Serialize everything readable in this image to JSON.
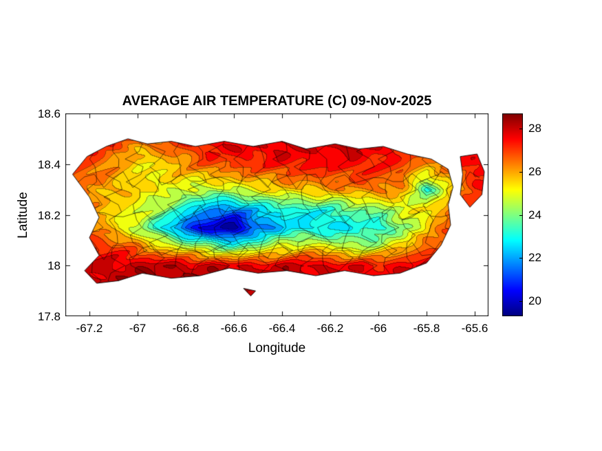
{
  "figure": {
    "title": "AVERAGE AIR TEMPERATURE (C) 09-Nov-2025",
    "xlabel": "Longitude",
    "ylabel": "Latitude",
    "background_color": "#ffffff"
  },
  "axes": {
    "xlim": [
      -67.3,
      -65.542857
    ],
    "ylim": [
      17.8,
      18.6
    ],
    "x_ticks": [
      -67.2,
      -67.0,
      -66.8,
      -66.6,
      -66.4,
      -66.2,
      -66.0,
      -65.8,
      -65.6
    ],
    "x_tick_labels": [
      "-67.2",
      "-67",
      "-66.8",
      "-66.6",
      "-66.4",
      "-66.2",
      "-66",
      "-65.8",
      "-65.6"
    ],
    "y_ticks": [
      17.8,
      18.0,
      18.2,
      18.4,
      18.6
    ],
    "y_tick_labels": [
      "17.8",
      "18",
      "18.2",
      "18.4",
      "18.6"
    ],
    "box_color": "#000000"
  },
  "colorbar": {
    "ticks": [
      20,
      22,
      24,
      26,
      28
    ],
    "tick_labels": [
      "20",
      "22",
      "24",
      "26",
      "28"
    ],
    "vmin": 19.3,
    "vmax": 28.7,
    "colormap": "jet"
  },
  "chart_data": {
    "type": "heatmap",
    "title": "AVERAGE AIR TEMPERATURE (C) 09-Nov-2025",
    "xlabel": "Longitude",
    "ylabel": "Latitude",
    "units": "C",
    "region": "Puerto Rico (filled contour map with municipality boundaries)",
    "colormap": "jet",
    "caxis": [
      19.3,
      28.7
    ],
    "band_step": 0.5,
    "xlim": [
      -67.3,
      -65.542857
    ],
    "ylim": [
      17.8,
      18.6
    ],
    "lons": [
      -67.3,
      -67.2,
      -67.1,
      -67.0,
      -66.9,
      -66.8,
      -66.7,
      -66.6,
      -66.5,
      -66.4,
      -66.3,
      -66.2,
      -66.1,
      -66.0,
      -65.9,
      -65.8,
      -65.7,
      -65.6,
      -65.5
    ],
    "lats": [
      17.9,
      18.0,
      18.08,
      18.15,
      18.22,
      18.3,
      18.4,
      18.5
    ],
    "temps": [
      [
        28.2,
        28.2,
        28.2,
        28.2,
        28.3,
        28.3,
        28.3,
        28.2,
        28.2,
        28.2,
        28.1,
        28.0,
        28.0,
        28.0,
        28.0,
        28.1,
        28.1,
        28.2,
        28.2
      ],
      [
        27.8,
        27.9,
        28.0,
        28.1,
        28.2,
        28.1,
        28.0,
        27.8,
        27.8,
        27.9,
        28.0,
        27.8,
        27.6,
        27.5,
        27.7,
        27.9,
        28.0,
        28.1,
        28.1
      ],
      [
        27.5,
        27.2,
        27.0,
        26.2,
        25.2,
        24.5,
        23.8,
        23.2,
        24.0,
        24.8,
        25.2,
        24.8,
        24.2,
        24.5,
        25.5,
        26.5,
        27.2,
        27.8,
        28.0
      ],
      [
        27.0,
        26.5,
        25.5,
        24.5,
        23.0,
        21.0,
        20.0,
        19.5,
        21.5,
        22.3,
        22.8,
        22.5,
        23.0,
        23.0,
        24.0,
        25.5,
        26.8,
        27.5,
        28.0
      ],
      [
        27.0,
        26.2,
        25.5,
        25.0,
        24.2,
        23.0,
        21.8,
        21.5,
        22.5,
        23.0,
        23.0,
        23.2,
        23.8,
        24.0,
        25.0,
        25.2,
        26.5,
        27.5,
        27.8
      ],
      [
        26.8,
        26.2,
        25.8,
        25.5,
        25.2,
        24.8,
        24.5,
        24.8,
        25.2,
        25.5,
        25.8,
        26.0,
        26.2,
        26.5,
        26.0,
        23.2,
        25.5,
        27.0,
        27.5
      ],
      [
        27.2,
        26.8,
        26.2,
        25.2,
        25.5,
        26.2,
        26.8,
        27.0,
        27.2,
        27.4,
        27.5,
        27.5,
        27.5,
        27.3,
        27.0,
        26.2,
        26.8,
        27.5,
        27.8
      ],
      [
        27.8,
        27.5,
        27.2,
        26.5,
        26.8,
        27.3,
        27.8,
        28.0,
        28.0,
        28.0,
        28.0,
        28.0,
        28.0,
        27.8,
        27.5,
        27.3,
        27.5,
        27.8,
        28.0
      ]
    ],
    "outline_main": [
      [
        -67.27,
        18.36
      ],
      [
        -67.21,
        18.43
      ],
      [
        -67.13,
        18.47
      ],
      [
        -67.04,
        18.5
      ],
      [
        -66.96,
        18.48
      ],
      [
        -66.86,
        18.49
      ],
      [
        -66.76,
        18.47
      ],
      [
        -66.64,
        18.49
      ],
      [
        -66.52,
        18.47
      ],
      [
        -66.4,
        18.49
      ],
      [
        -66.3,
        18.46
      ],
      [
        -66.18,
        18.48
      ],
      [
        -66.08,
        18.46
      ],
      [
        -65.98,
        18.47
      ],
      [
        -65.88,
        18.44
      ],
      [
        -65.78,
        18.42
      ],
      [
        -65.71,
        18.38
      ],
      [
        -65.69,
        18.31
      ],
      [
        -65.71,
        18.24
      ],
      [
        -65.7,
        18.16
      ],
      [
        -65.74,
        18.08
      ],
      [
        -65.8,
        18.01
      ],
      [
        -65.91,
        17.97
      ],
      [
        -66.02,
        17.96
      ],
      [
        -66.14,
        17.98
      ],
      [
        -66.26,
        17.96
      ],
      [
        -66.38,
        17.98
      ],
      [
        -66.5,
        17.97
      ],
      [
        -66.62,
        17.99
      ],
      [
        -66.74,
        17.96
      ],
      [
        -66.86,
        17.95
      ],
      [
        -66.98,
        17.97
      ],
      [
        -67.08,
        17.94
      ],
      [
        -67.17,
        17.93
      ],
      [
        -67.22,
        17.98
      ],
      [
        -67.16,
        18.04
      ],
      [
        -67.2,
        18.11
      ],
      [
        -67.16,
        18.19
      ],
      [
        -67.2,
        18.27
      ]
    ],
    "outline_east_islet": [
      [
        -65.66,
        18.43
      ],
      [
        -65.59,
        18.44
      ],
      [
        -65.56,
        18.37
      ],
      [
        -65.57,
        18.28
      ],
      [
        -65.62,
        18.23
      ],
      [
        -65.66,
        18.28
      ],
      [
        -65.65,
        18.36
      ]
    ],
    "outline_south_islet": [
      [
        -66.56,
        17.91
      ],
      [
        -66.51,
        17.9
      ],
      [
        -66.53,
        17.88
      ]
    ]
  }
}
